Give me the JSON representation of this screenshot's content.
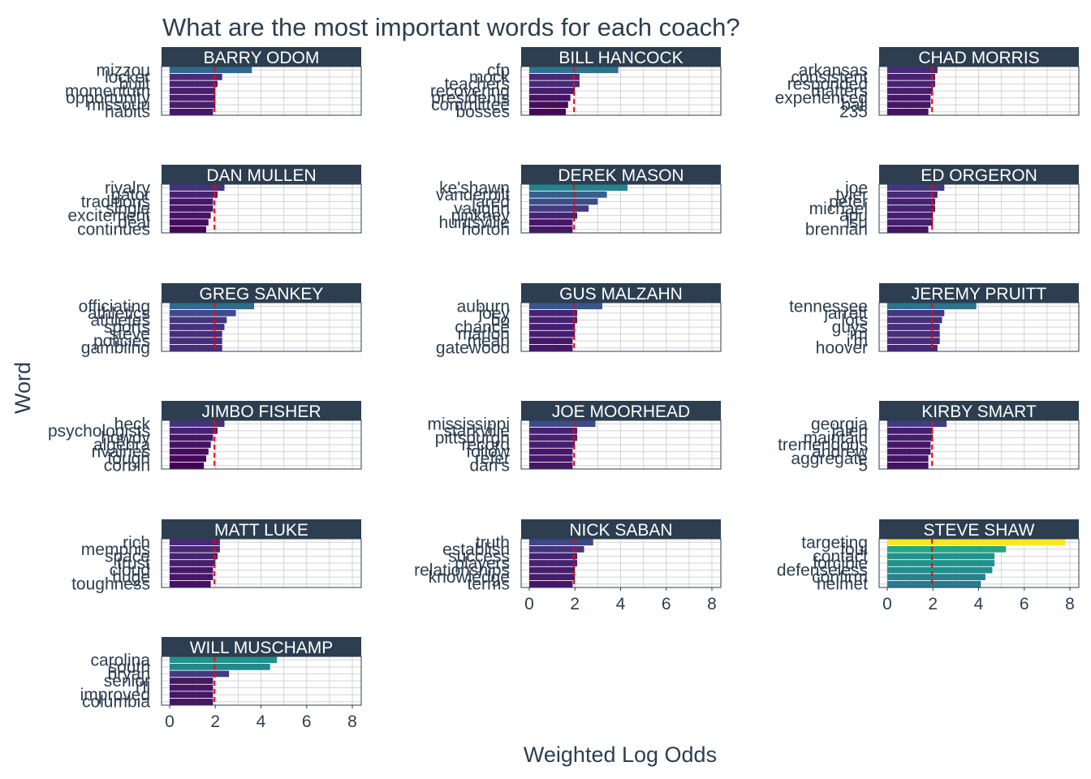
{
  "chart_data": {
    "type": "bar",
    "title": "What are the most important words for each coach?",
    "xlabel": "Weighted Log Odds",
    "ylabel": "Word",
    "xlim": [
      0,
      8
    ],
    "x_ticks": [
      "0",
      "2",
      "4",
      "6",
      "8"
    ],
    "reference_line": 1.96,
    "colors": {
      "strip": "#2c3e50",
      "reference_line": "#ff0000",
      "low": "#440154",
      "high": "#fde725"
    },
    "panels": [
      {
        "name": "BARRY ODOM",
        "words": [
          "mizzou",
          "locker",
          "built",
          "momentum",
          "opportunity",
          "missouri",
          "habits"
        ],
        "values": [
          3.6,
          2.3,
          2.1,
          2.0,
          2.0,
          2.0,
          1.9
        ]
      },
      {
        "name": "BILL HANCOCK",
        "words": [
          "cfp",
          "mock",
          "teachers",
          "recovering",
          "presidents",
          "committee",
          "bosses"
        ],
        "values": [
          3.9,
          2.2,
          2.2,
          2.0,
          1.8,
          1.7,
          1.6
        ]
      },
      {
        "name": "CHAD MORRIS",
        "words": [
          "arkansas",
          "consistent",
          "responded",
          "matters",
          "experienced",
          "ball",
          "235"
        ],
        "values": [
          2.2,
          2.1,
          2.1,
          2.0,
          1.9,
          1.9,
          1.8
        ]
      },
      {
        "name": "DAN MULLEN",
        "words": [
          "rivalry",
          "gator",
          "traditions",
          "single",
          "excitement",
          "deal",
          "continues"
        ],
        "values": [
          2.4,
          2.1,
          1.9,
          1.9,
          1.8,
          1.7,
          1.6
        ]
      },
      {
        "name": "DEREK MASON",
        "words": [
          "ke'shawn",
          "vanderbilt",
          "jared",
          "vaughn",
          "pinkney",
          "huntsville",
          "horton"
        ],
        "values": [
          4.3,
          3.4,
          3.0,
          2.6,
          2.1,
          1.9,
          1.9
        ]
      },
      {
        "name": "ED ORGERON",
        "words": [
          "joe",
          "tyler",
          "peter",
          "michael",
          "apu",
          "lsu",
          "brennan"
        ],
        "values": [
          2.5,
          2.2,
          2.1,
          2.1,
          2.0,
          2.0,
          1.8
        ]
      },
      {
        "name": "GREG SANKEY",
        "words": [
          "officiating",
          "athletics",
          "athletes",
          "sports",
          "steve",
          "policies",
          "gambling"
        ],
        "values": [
          3.7,
          2.9,
          2.5,
          2.4,
          2.3,
          2.3,
          2.3
        ]
      },
      {
        "name": "GUS MALZAHN",
        "words": [
          "auburn",
          "joey",
          "bo",
          "chance",
          "marlon",
          "mean",
          "gatewood"
        ],
        "values": [
          3.2,
          2.1,
          2.1,
          2.0,
          2.0,
          1.9,
          1.9
        ]
      },
      {
        "name": "JEREMY PRUITT",
        "words": [
          "tennessee",
          "jarrett",
          "lots",
          "guys",
          "im",
          "i'm",
          "hoover"
        ],
        "values": [
          3.9,
          2.5,
          2.4,
          2.3,
          2.3,
          2.3,
          2.2
        ]
      },
      {
        "name": "JIMBO FISHER",
        "words": [
          "heck",
          "psychologists",
          "howdy",
          "algebra",
          "rivalries",
          "tough",
          "corbin"
        ],
        "values": [
          2.4,
          2.1,
          1.9,
          1.8,
          1.7,
          1.6,
          1.5
        ]
      },
      {
        "name": "JOE MOORHEAD",
        "words": [
          "mississippi",
          "starkville",
          "pittsburgh",
          "record",
          "follow",
          "refer",
          "dan's"
        ],
        "values": [
          2.9,
          2.1,
          2.1,
          2.0,
          1.9,
          1.9,
          1.9
        ]
      },
      {
        "name": "KIRBY SMART",
        "words": [
          "georgia",
          "jalen",
          "maintain",
          "tremendous",
          "andrew",
          "aggregate",
          "5"
        ],
        "values": [
          2.6,
          2.0,
          2.0,
          1.9,
          1.9,
          1.8,
          1.8
        ]
      },
      {
        "name": "MATT LUKE",
        "words": [
          "rich",
          "memphis",
          "space",
          "trust",
          "cloud",
          "huge",
          "toughness"
        ],
        "values": [
          2.2,
          2.2,
          2.1,
          2.0,
          1.9,
          1.9,
          1.8
        ]
      },
      {
        "name": "NICK SABAN",
        "words": [
          "truth",
          "establish",
          "success",
          "players",
          "relationships",
          "knowledge",
          "terms"
        ],
        "values": [
          2.8,
          2.4,
          2.1,
          2.1,
          2.0,
          2.0,
          1.9
        ]
      },
      {
        "name": "STEVE SHAW",
        "words": [
          "targeting",
          "foul",
          "contact",
          "forcible",
          "defenseless",
          "confirm",
          "helmet"
        ],
        "values": [
          7.8,
          5.2,
          4.7,
          4.7,
          4.6,
          4.3,
          4.1
        ]
      },
      {
        "name": "WILL MUSCHAMP",
        "words": [
          "carolina",
          "south",
          "bryan",
          "senior",
          "i'll",
          "improved",
          "columbia"
        ],
        "values": [
          4.7,
          4.4,
          2.6,
          1.9,
          1.9,
          1.9,
          1.9
        ]
      }
    ]
  }
}
